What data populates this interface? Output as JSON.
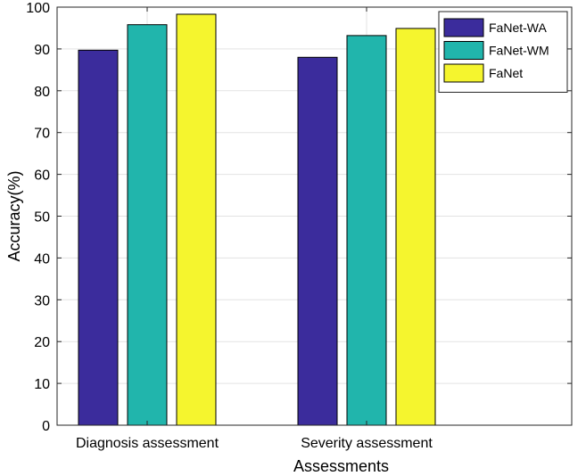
{
  "chart_data": {
    "type": "bar",
    "title": "",
    "xlabel": "Assessments",
    "ylabel": "Accuracy(%)",
    "ylim": [
      0,
      100
    ],
    "yticks": [
      0,
      10,
      20,
      30,
      40,
      50,
      60,
      70,
      80,
      90,
      100
    ],
    "grid": true,
    "legend_position": "top-right",
    "categories": [
      "Diagnosis assessment",
      "Severity assessment"
    ],
    "series": [
      {
        "name": "FaNet-WA",
        "color": "#3b2c9c",
        "values": [
          89.7,
          88.0
        ]
      },
      {
        "name": "FaNet-WM",
        "color": "#21b5ac",
        "values": [
          95.8,
          93.2
        ]
      },
      {
        "name": "FaNet",
        "color": "#f5f52e",
        "values": [
          98.3,
          94.9
        ]
      }
    ]
  }
}
